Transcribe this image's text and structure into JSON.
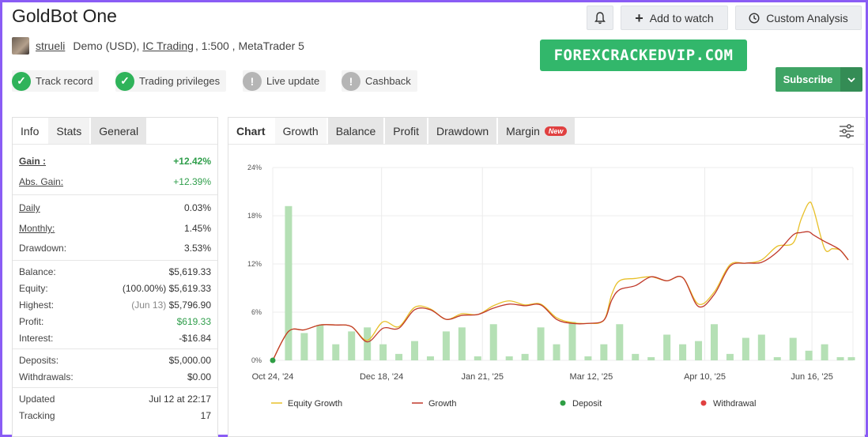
{
  "header": {
    "title": "GoldBot One",
    "notify_icon": "bell-icon",
    "add_watch": "Add to watch",
    "custom_analysis": "Custom Analysis"
  },
  "account": {
    "username": "strueli",
    "type": "Demo (USD),",
    "broker": "IC Trading",
    "rest": ", 1:500 , MetaTrader 5"
  },
  "badges": [
    {
      "label": "Track record",
      "status": "ok"
    },
    {
      "label": "Trading privileges",
      "status": "ok"
    },
    {
      "label": "Live update",
      "status": "warn"
    },
    {
      "label": "Cashback",
      "status": "warn"
    }
  ],
  "promo": "FOREXCRACKEDVIP.COM",
  "subscribe": "Subscribe",
  "stats_tabs": [
    "Info",
    "Stats",
    "General"
  ],
  "stats": {
    "gain_label": "Gain :",
    "gain": "+12.42%",
    "abs_gain_label": "Abs. Gain:",
    "abs_gain": "+12.39%",
    "daily_label": "Daily",
    "daily": "0.03%",
    "monthly_label": "Monthly:",
    "monthly": "1.45%",
    "drawdown_label": "Drawdown:",
    "drawdown": "3.53%",
    "balance_label": "Balance:",
    "balance": "$5,619.33",
    "equity_label": "Equity:",
    "equity_pct": "(100.00%)",
    "equity": "$5,619.33",
    "highest_label": "Highest:",
    "highest_date": "(Jun 13)",
    "highest": "$5,796.90",
    "profit_label": "Profit:",
    "profit": "$619.33",
    "interest_label": "Interest:",
    "interest": "-$16.84",
    "deposits_label": "Deposits:",
    "deposits": "$5,000.00",
    "withdrawals_label": "Withdrawals:",
    "withdrawals": "$0.00",
    "updated_label": "Updated",
    "updated": "Jul 12 at 22:17",
    "tracking_label": "Tracking",
    "tracking": "17"
  },
  "chart_tabs": [
    "Chart",
    "Growth",
    "Balance",
    "Profit",
    "Drawdown",
    "Margin"
  ],
  "new_badge": "New",
  "colors": {
    "equity": "#e8c02a",
    "growth": "#c0392b",
    "bar": "#b5e0b5",
    "deposit": "#2e9e44",
    "withdrawal": "#e04040"
  },
  "chart_data": {
    "type": "line",
    "y_ticks": [
      "24%",
      "18%",
      "12%",
      "6%",
      "0%"
    ],
    "ylim": [
      0,
      24
    ],
    "x_ticks": [
      "Oct 24, '24",
      "Dec 18, '24",
      "Jan 21, '25",
      "Mar 12, '25",
      "Apr 10, '25",
      "Jun 16, '25"
    ],
    "x_tick_positions": [
      0,
      6.9,
      13.3,
      20.2,
      27.4,
      34.2
    ],
    "xlim": [
      0,
      36.8
    ],
    "bars": [
      {
        "x": 1,
        "v": 19.2
      },
      {
        "x": 2,
        "v": 3.4
      },
      {
        "x": 3,
        "v": 4.4
      },
      {
        "x": 4,
        "v": 2.0
      },
      {
        "x": 5,
        "v": 3.6
      },
      {
        "x": 6,
        "v": 4.1
      },
      {
        "x": 7,
        "v": 2.0
      },
      {
        "x": 8,
        "v": 0.8
      },
      {
        "x": 9,
        "v": 2.4
      },
      {
        "x": 10,
        "v": 0.5
      },
      {
        "x": 11,
        "v": 3.6
      },
      {
        "x": 12,
        "v": 4.1
      },
      {
        "x": 13,
        "v": 0.5
      },
      {
        "x": 14,
        "v": 4.5
      },
      {
        "x": 15,
        "v": 0.5
      },
      {
        "x": 16,
        "v": 0.8
      },
      {
        "x": 17,
        "v": 4.1
      },
      {
        "x": 18,
        "v": 2.0
      },
      {
        "x": 19,
        "v": 4.8
      },
      {
        "x": 20,
        "v": 0.5
      },
      {
        "x": 21,
        "v": 2.0
      },
      {
        "x": 22,
        "v": 4.5
      },
      {
        "x": 23,
        "v": 0.8
      },
      {
        "x": 24,
        "v": 0.4
      },
      {
        "x": 25,
        "v": 3.2
      },
      {
        "x": 26,
        "v": 2.0
      },
      {
        "x": 27,
        "v": 2.4
      },
      {
        "x": 28,
        "v": 4.5
      },
      {
        "x": 29,
        "v": 0.8
      },
      {
        "x": 30,
        "v": 2.8
      },
      {
        "x": 31,
        "v": 3.2
      },
      {
        "x": 32,
        "v": 0.4
      },
      {
        "x": 33,
        "v": 2.8
      },
      {
        "x": 34,
        "v": 1.2
      },
      {
        "x": 35,
        "v": 2.0
      },
      {
        "x": 36,
        "v": 0.4
      },
      {
        "x": 36.7,
        "v": 0.4
      }
    ],
    "series": [
      {
        "name": "Equity Growth",
        "x": [
          0,
          1,
          2,
          3,
          4,
          5,
          6,
          7,
          8,
          9,
          10,
          11,
          12,
          13,
          14,
          15,
          16,
          17,
          18,
          19,
          20,
          21,
          21.5,
          22,
          23,
          24,
          25,
          26,
          27,
          28,
          29,
          30,
          31,
          32,
          33,
          33.5,
          34,
          34.3,
          35,
          35.5,
          36,
          36.5
        ],
        "y": [
          0,
          3.6,
          3.8,
          4.4,
          4.4,
          4.2,
          2.5,
          4.8,
          4.2,
          6.6,
          6.4,
          5.1,
          5.8,
          5.7,
          6.8,
          7.4,
          6.9,
          7.0,
          5.3,
          4.7,
          4.6,
          5.0,
          8.2,
          9.9,
          10.2,
          10.4,
          9.9,
          10.3,
          7.0,
          8.5,
          11.9,
          12.1,
          12.5,
          14.2,
          14.6,
          17.5,
          19.6,
          18.8,
          13.9,
          13.9,
          13.7,
          12.5
        ]
      },
      {
        "name": "Growth",
        "x": [
          0,
          1,
          2,
          3,
          4,
          5,
          6,
          7,
          8,
          9,
          10,
          11,
          12,
          13,
          14,
          15,
          16,
          17,
          18,
          19,
          20,
          21,
          21.5,
          22,
          23,
          24,
          25,
          26,
          27,
          28,
          29,
          30,
          31,
          32,
          33,
          33.5,
          34,
          34.3,
          35,
          35.5,
          36,
          36.5
        ],
        "y": [
          0,
          3.6,
          3.8,
          4.4,
          4.4,
          4.2,
          2.3,
          4.0,
          4.0,
          6.3,
          6.3,
          5.1,
          5.6,
          5.7,
          6.5,
          7.0,
          6.8,
          6.9,
          5.1,
          4.6,
          4.6,
          5.0,
          7.5,
          8.8,
          9.3,
          10.4,
          9.9,
          10.3,
          6.7,
          8.2,
          11.7,
          12.1,
          12.2,
          13.5,
          15.6,
          15.9,
          16.0,
          15.6,
          14.8,
          14.3,
          13.7,
          12.5
        ]
      }
    ],
    "deposit_point": {
      "x": 0,
      "y": 0
    },
    "legend": [
      "Equity Growth",
      "Growth",
      "Deposit",
      "Withdrawal"
    ]
  }
}
